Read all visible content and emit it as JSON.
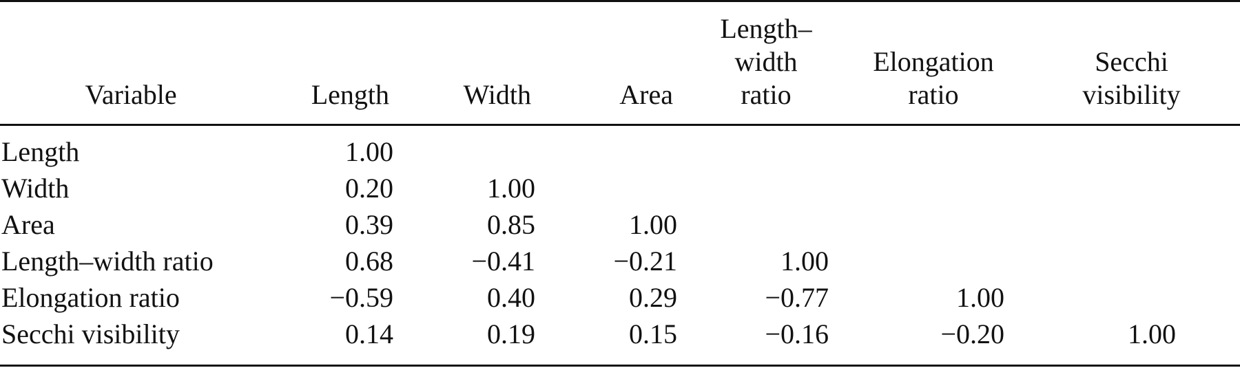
{
  "table": {
    "headers": [
      [
        "Variable"
      ],
      [
        "Length"
      ],
      [
        "Width"
      ],
      [
        "Area"
      ],
      [
        "Length–",
        "width",
        "ratio"
      ],
      [
        "Elongation",
        "ratio"
      ],
      [
        "Secchi",
        "visibility"
      ]
    ],
    "rows": [
      {
        "label": "Length",
        "values": [
          "1.00",
          "",
          "",
          "",
          "",
          ""
        ]
      },
      {
        "label": "Width",
        "values": [
          "0.20",
          "1.00",
          "",
          "",
          "",
          ""
        ]
      },
      {
        "label": "Area",
        "values": [
          "0.39",
          "0.85",
          "1.00",
          "",
          "",
          ""
        ]
      },
      {
        "label": "Length–width ratio",
        "values": [
          "0.68",
          "−0.41",
          "−0.21",
          "1.00",
          "",
          ""
        ]
      },
      {
        "label": "Elongation ratio",
        "values": [
          "−0.59",
          "0.40",
          "0.29",
          "−0.77",
          "1.00",
          ""
        ]
      },
      {
        "label": "Secchi visibility",
        "values": [
          "0.14",
          "0.19",
          "0.15",
          "−0.16",
          "−0.20",
          "1.00"
        ]
      }
    ]
  }
}
